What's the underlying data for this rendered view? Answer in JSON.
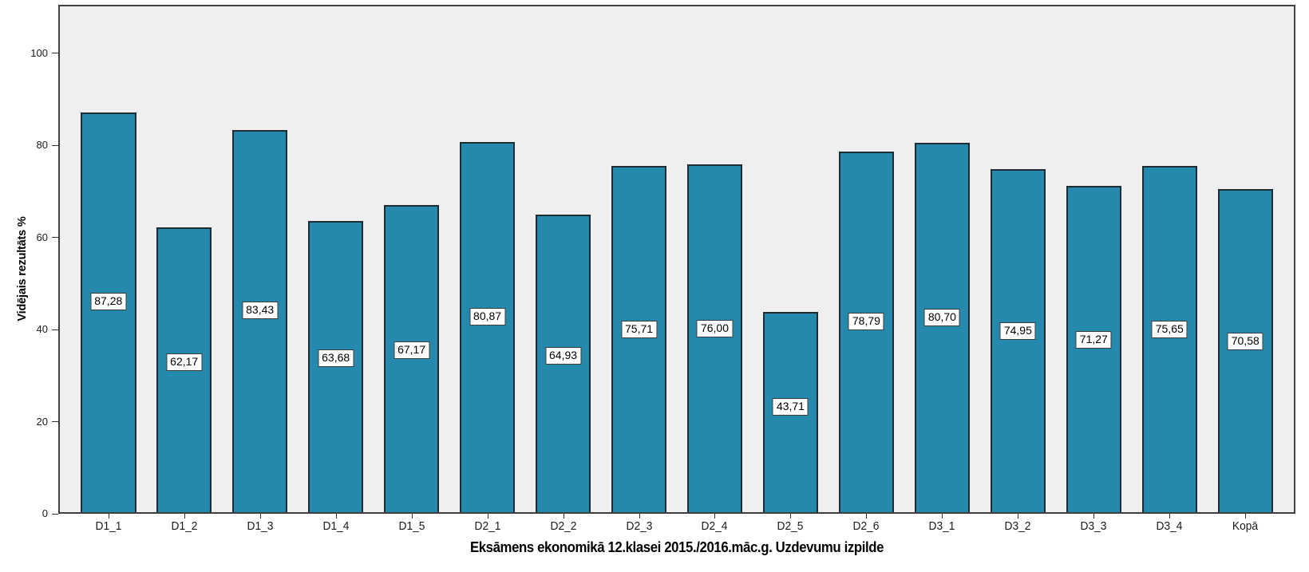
{
  "chart_data": {
    "type": "bar",
    "title": "",
    "xlabel": "Eksāmens ekonomikā 12.klasei 2015./2016.māc.g. Uzdevumu izpilde",
    "ylabel": "Vidējais rezultāts %",
    "categories": [
      "D1_1",
      "D1_2",
      "D1_3",
      "D1_4",
      "D1_5",
      "D2_1",
      "D2_2",
      "D2_3",
      "D2_4",
      "D2_5",
      "D2_6",
      "D3_1",
      "D3_2",
      "D3_3",
      "D3_4",
      "Kopā"
    ],
    "values": [
      87.28,
      62.17,
      83.43,
      63.68,
      67.17,
      80.87,
      64.93,
      75.71,
      76.0,
      43.71,
      78.79,
      80.7,
      74.95,
      71.27,
      75.65,
      70.58
    ],
    "value_labels": [
      "87,28",
      "62,17",
      "83,43",
      "63,68",
      "67,17",
      "80,87",
      "64,93",
      "75,71",
      "76,00",
      "43,71",
      "78,79",
      "80,70",
      "74,95",
      "71,27",
      "75,65",
      "70,58"
    ],
    "y_ticks": [
      0,
      20,
      40,
      60,
      80,
      100
    ],
    "ylim": [
      0,
      110.5
    ],
    "grid": false,
    "legend": null,
    "colors": {
      "bar_fill": "#2589ad",
      "bar_border": "#1e2b31",
      "plot_background": "#efefef",
      "frame_border": "#3f3f3f",
      "tick": "#333333",
      "label_box_background": "#ffffff",
      "label_box_border": "#3c3c3c",
      "text": "#000000",
      "outer_background": "#ffffff"
    }
  }
}
